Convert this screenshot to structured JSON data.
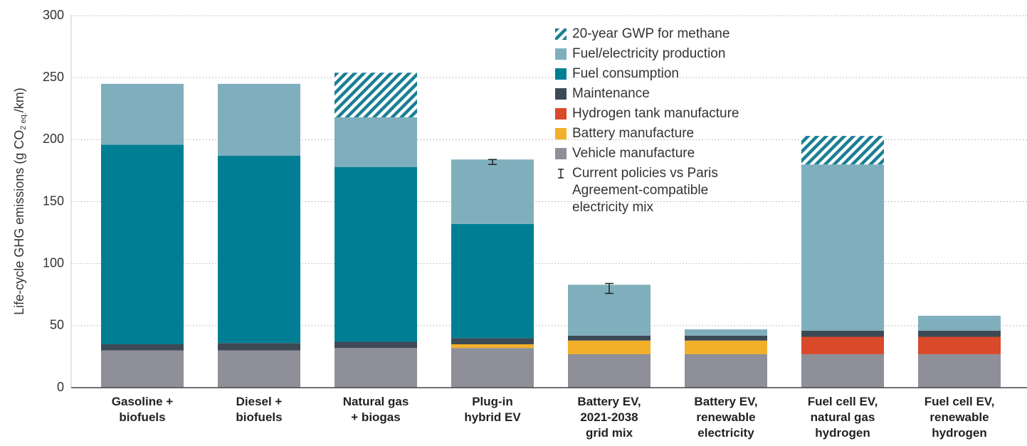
{
  "chart_data": {
    "type": "bar",
    "stacked": true,
    "y_label": {
      "text": "Life-cycle GHG emissions (g CO",
      "sub": "2 eq.",
      "after": "/km)"
    },
    "categories": [
      "Gasoline +\nbiofuels",
      "Diesel +\nbiofuels",
      "Natural gas\n+ biogas",
      "Plug-in\nhybrid EV",
      "Battery EV,\n2021-2038\ngrid mix",
      "Battery EV,\nrenewable\nelectricity",
      "Fuel cell EV,\nnatural gas\nhydrogen",
      "Fuel cell EV,\nrenewable\nhydrogen"
    ],
    "series": [
      {
        "name": "Vehicle manufacture",
        "color": "#8e8f99",
        "values": [
          30,
          30,
          32,
          32,
          27,
          27,
          27,
          27
        ]
      },
      {
        "name": "Battery manufacture",
        "color": "#f2b02a",
        "values": [
          null,
          null,
          null,
          3,
          11,
          11,
          null,
          null
        ]
      },
      {
        "name": "Hydrogen tank manufacture",
        "color": "#d9492a",
        "values": [
          null,
          null,
          null,
          null,
          null,
          null,
          14,
          14
        ]
      },
      {
        "name": "Maintenance",
        "color": "#3d4a55",
        "values": [
          5,
          6,
          5,
          5,
          4,
          4,
          5,
          5
        ]
      },
      {
        "name": "Fuel consumption",
        "color": "#007f94",
        "values": [
          161,
          151,
          141,
          92,
          null,
          null,
          null,
          null
        ]
      },
      {
        "name": "Fuel/electricity production",
        "color": "#7fafbd",
        "values": [
          49,
          58,
          40,
          52,
          41,
          5,
          134,
          12
        ]
      },
      {
        "name": "20-year GWP for methane",
        "color": "#1a7f94",
        "pattern": "hatch",
        "values": [
          null,
          null,
          36,
          null,
          null,
          null,
          23,
          null
        ]
      }
    ],
    "error_bars": {
      "name": "Current policies vs Paris\nAgreement-compatible\nelectricity mix",
      "color": "#222222",
      "values": [
        null,
        null,
        null,
        182,
        80,
        null,
        null,
        null
      ],
      "errors": [
        null,
        null,
        null,
        2,
        4,
        null,
        null,
        null
      ]
    },
    "ylim": [
      0,
      300
    ],
    "yticks": [
      0,
      50,
      100,
      150,
      200,
      250,
      300
    ],
    "grid": true
  }
}
